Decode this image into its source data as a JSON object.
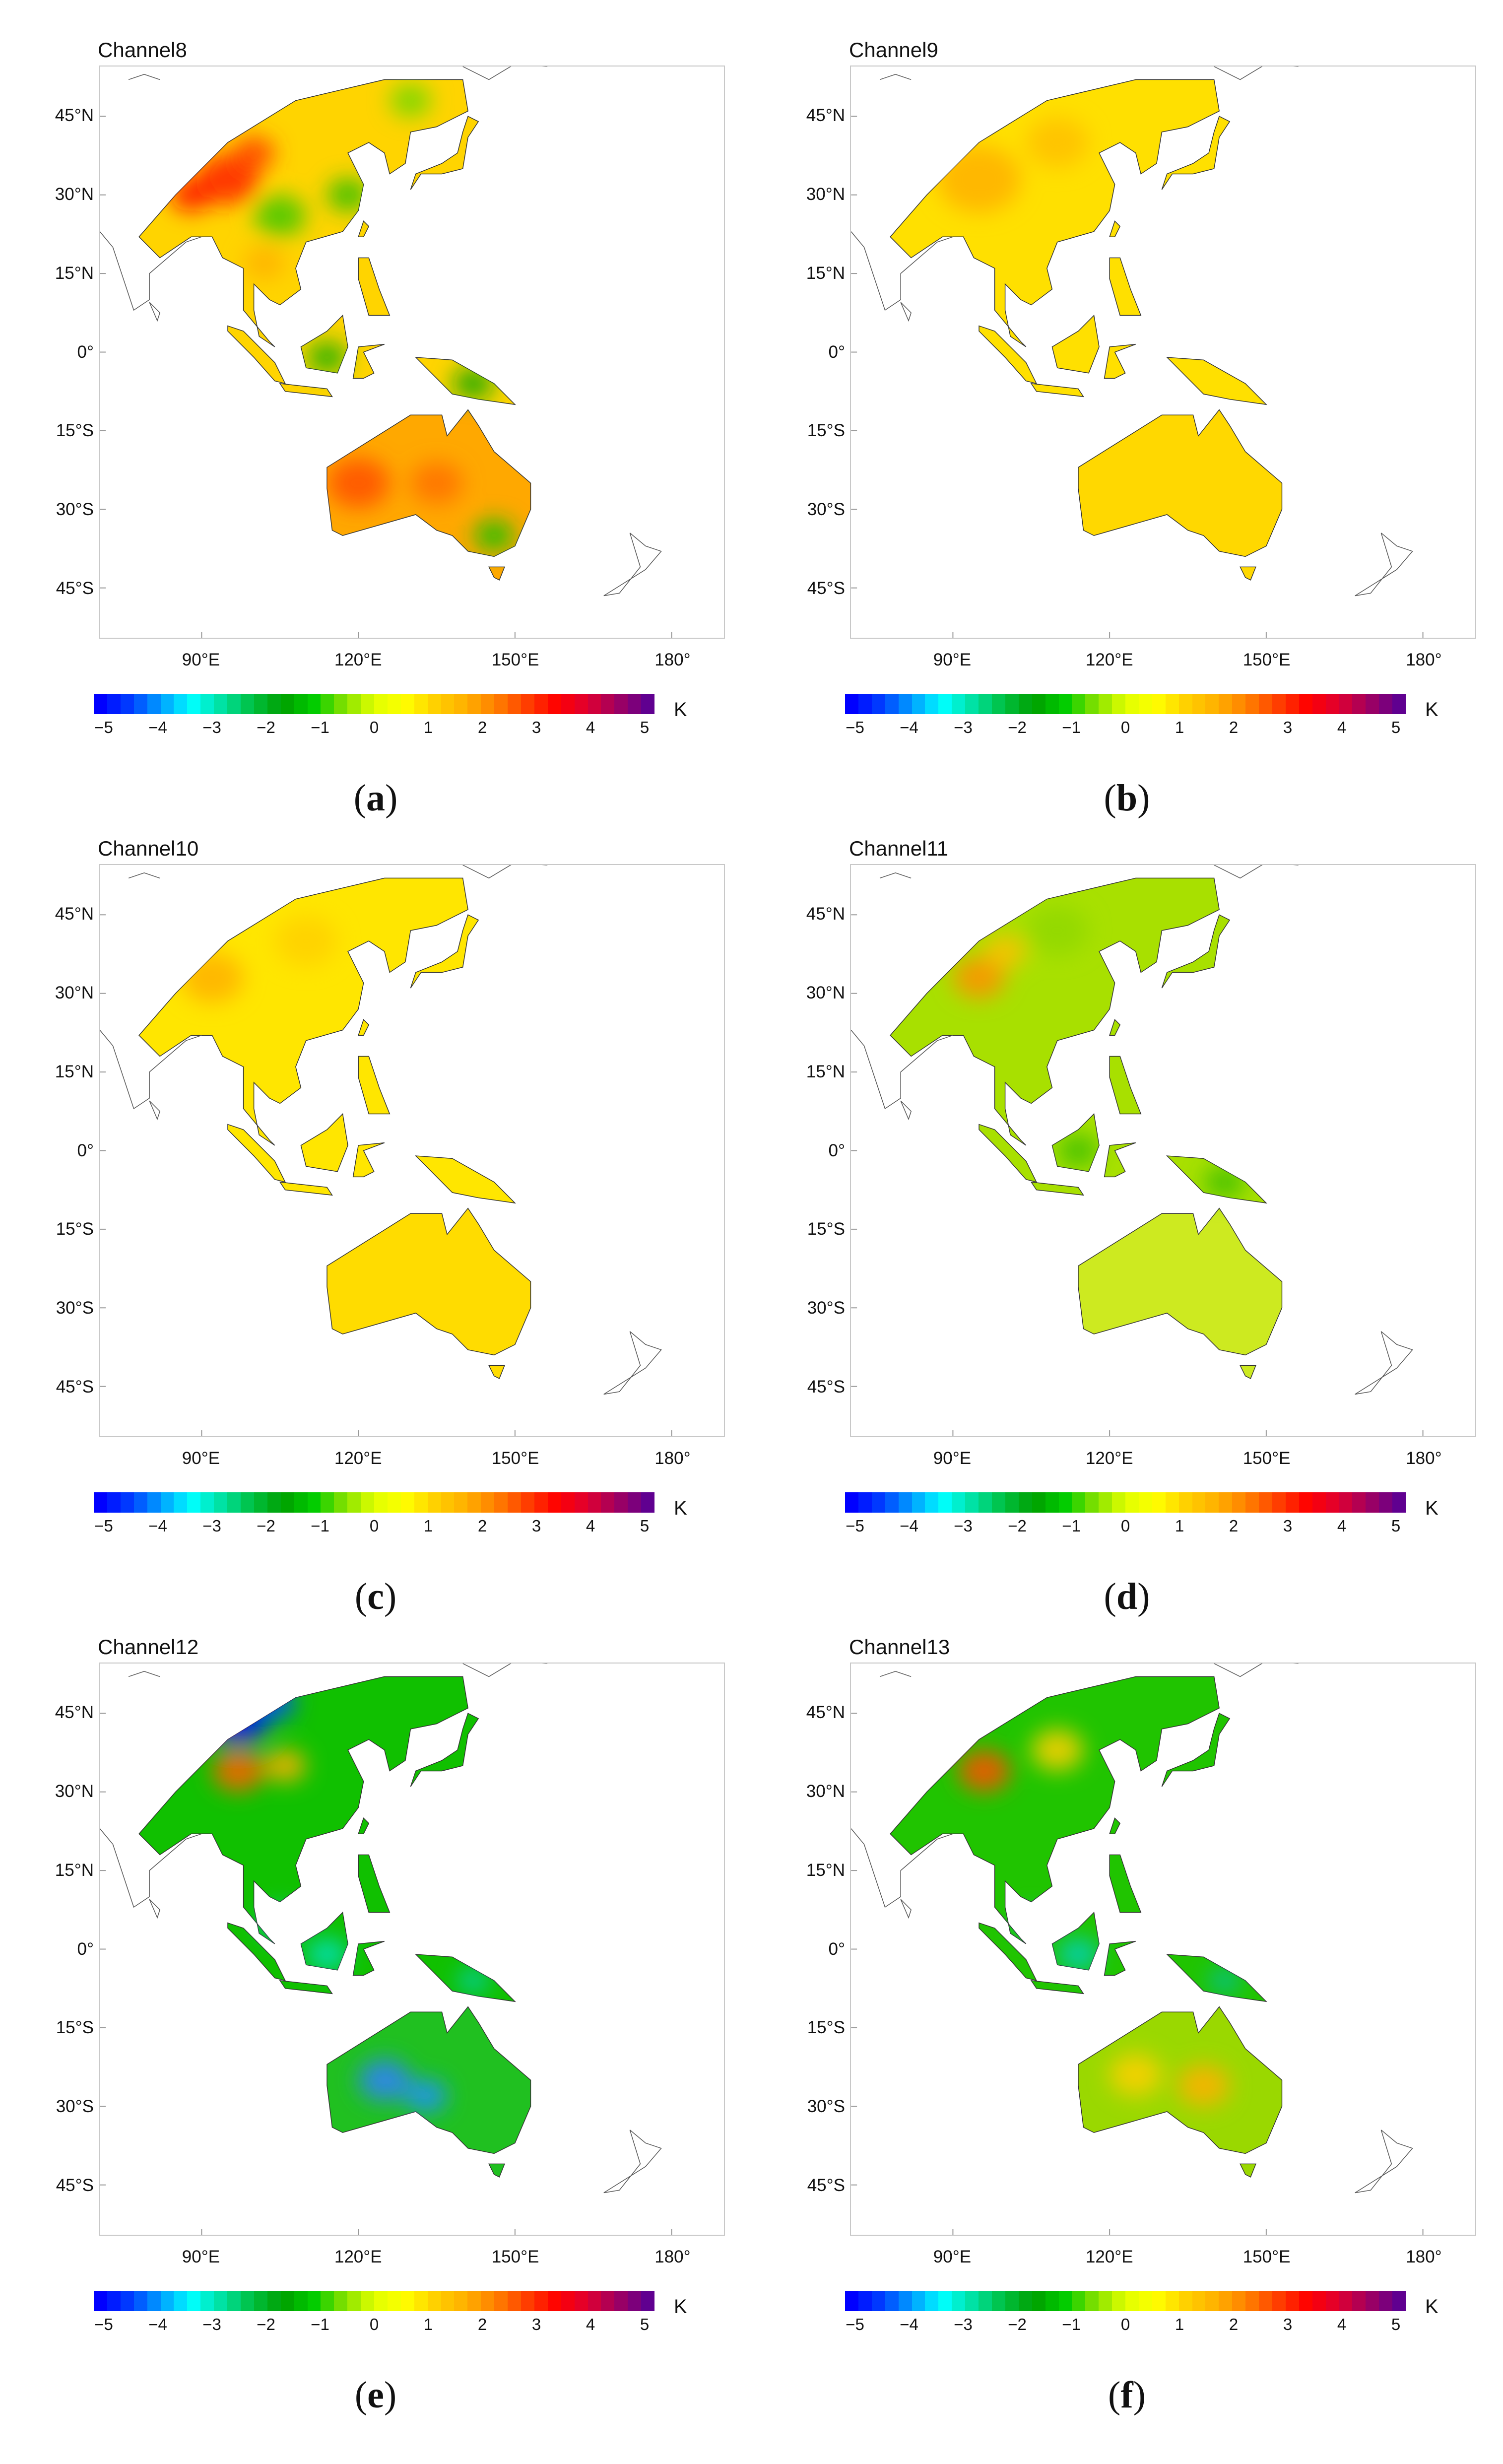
{
  "panels": [
    {
      "id": "a",
      "title": "Channel8",
      "label": "a",
      "land_color": "#ffd400",
      "australia_color": "#ffa800"
    },
    {
      "id": "b",
      "title": "Channel9",
      "label": "b",
      "land_color": "#ffe000",
      "australia_color": "#ffd800"
    },
    {
      "id": "c",
      "title": "Channel10",
      "label": "c",
      "land_color": "#ffe600",
      "australia_color": "#ffdc00"
    },
    {
      "id": "d",
      "title": "Channel11",
      "label": "d",
      "land_color": "#a8e000",
      "australia_color": "#cdea20"
    },
    {
      "id": "e",
      "title": "Channel12",
      "label": "e",
      "land_color": "#10c000",
      "australia_color": "#20c020"
    },
    {
      "id": "f",
      "title": "Channel13",
      "label": "f",
      "land_color": "#20c400",
      "australia_color": "#9ad800"
    }
  ],
  "lat_labels": [
    "45°N",
    "30°N",
    "15°N",
    "0°",
    "15°S",
    "30°S",
    "45°S"
  ],
  "lat_values": [
    45,
    30,
    15,
    0,
    -15,
    -30,
    -45
  ],
  "lon_labels": [
    "90°E",
    "120°E",
    "150°E",
    "180°"
  ],
  "lon_values": [
    90,
    120,
    150,
    180
  ],
  "map_extent": {
    "lon": [
      70.5,
      190
    ],
    "lat": [
      -54.5,
      54.5
    ]
  },
  "colorbar": {
    "ticks": [
      "−5",
      "−4",
      "−3",
      "−2",
      "−1",
      "0",
      "1",
      "2",
      "3",
      "4",
      "5"
    ],
    "range": [
      -5,
      5
    ],
    "unit": "K",
    "colors": [
      "#0000ff",
      "#0040ff",
      "#00a0ff",
      "#00ffff",
      "#00e0a0",
      "#00c040",
      "#00a000",
      "#00cc00",
      "#80e000",
      "#e0ff00",
      "#ffff00",
      "#ffd000",
      "#ffb000",
      "#ff8000",
      "#ff4000",
      "#ff0000",
      "#e00030",
      "#a00060",
      "#600090"
    ]
  }
}
